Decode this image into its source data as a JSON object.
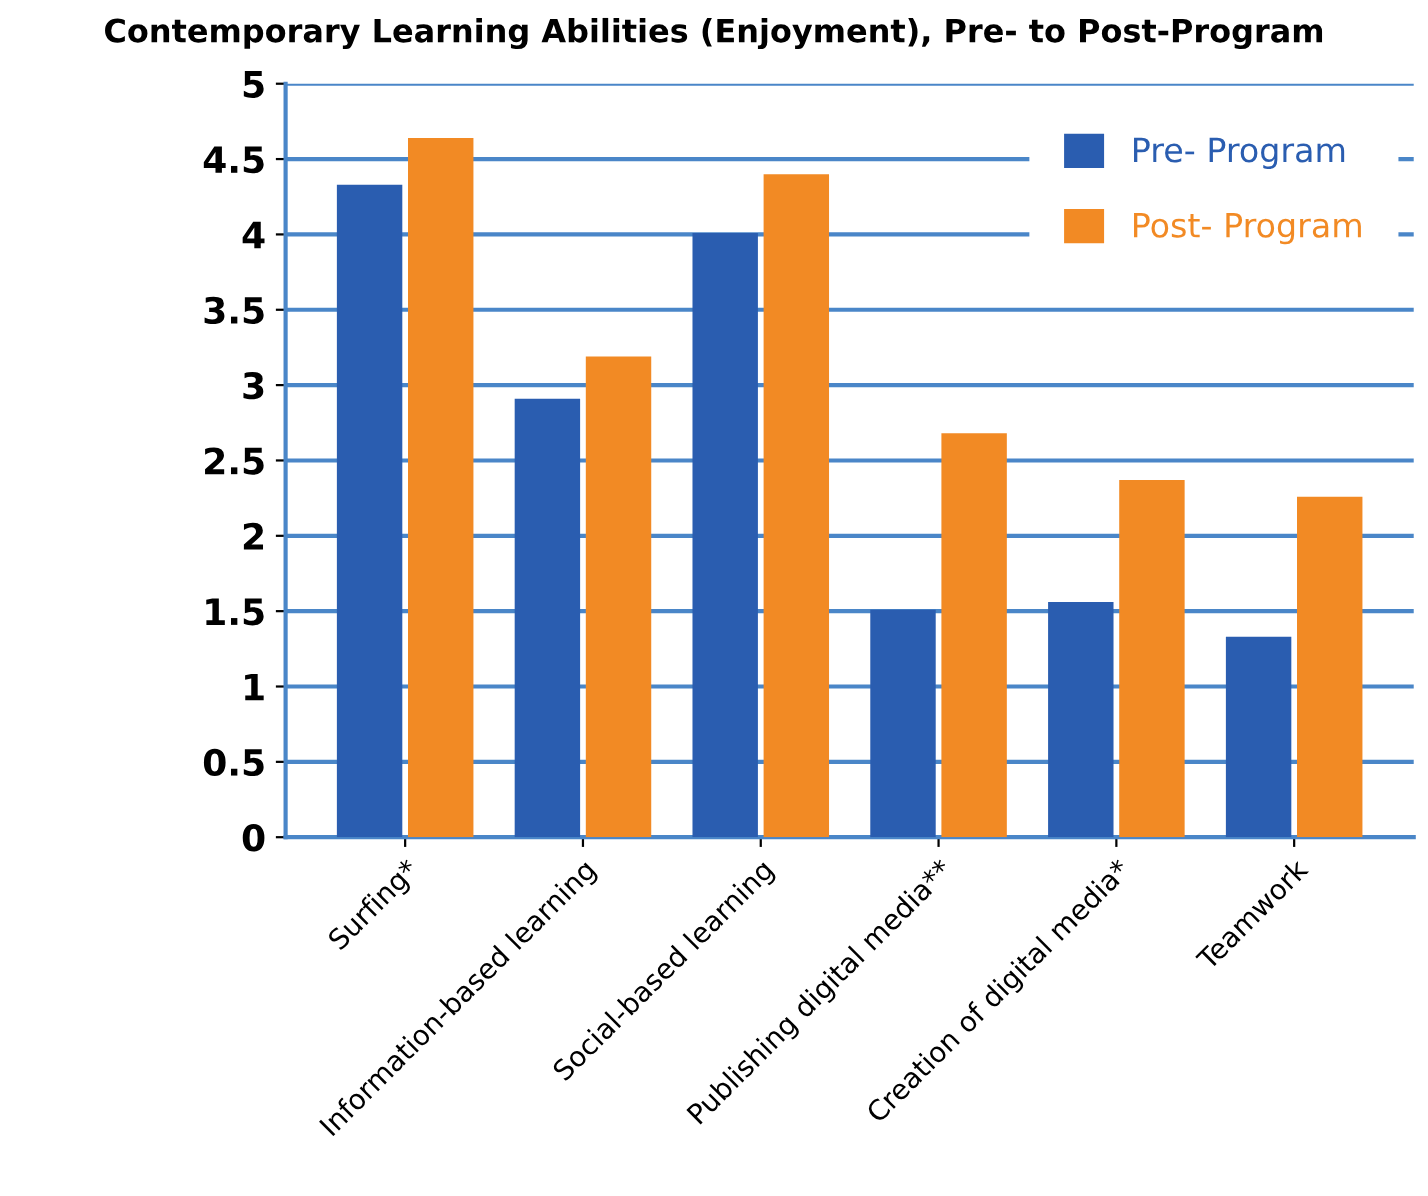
{
  "chart_data": {
    "type": "bar",
    "title": "Contemporary Learning Abilities (Enjoyment), Pre- to Post-Program",
    "categories": [
      "Surfing*",
      "Information-based learning",
      "Social-based learning",
      "Publishing digital media**",
      "Creation of digital media*",
      "Teamwork"
    ],
    "series": [
      {
        "name": "Pre- Program",
        "color": "#2a5db0",
        "values": [
          4.33,
          2.91,
          4.01,
          1.51,
          1.56,
          1.33
        ]
      },
      {
        "name": "Post- Program",
        "color": "#f28a24",
        "values": [
          4.64,
          3.19,
          4.4,
          2.68,
          2.37,
          2.26
        ]
      }
    ],
    "ylim": [
      0,
      5
    ],
    "yticks": [
      0,
      0.5,
      1,
      1.5,
      2,
      2.5,
      3,
      3.5,
      4,
      4.5,
      5
    ],
    "grid": "y",
    "legend": "top right"
  }
}
